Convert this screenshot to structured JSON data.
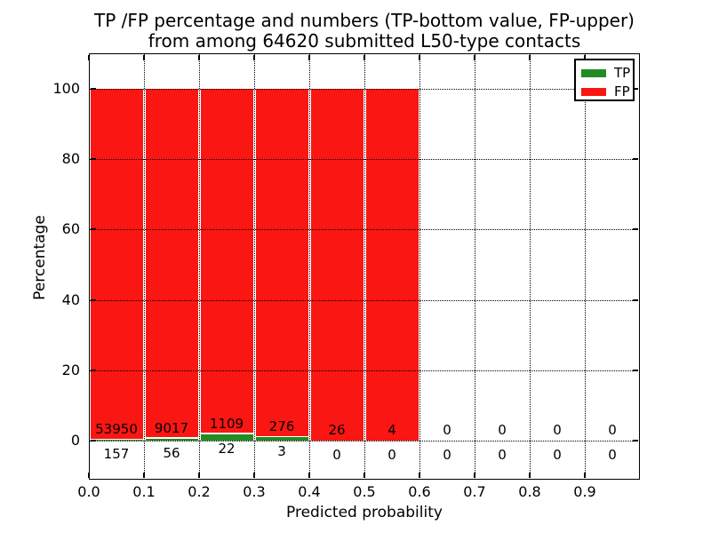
{
  "chart_data": {
    "type": "bar",
    "stacked": true,
    "title_lines": [
      "TP /FP percentage and numbers (TP-bottom value, FP-upper)",
      "from among 64620 submitted L50-type contacts"
    ],
    "total_submitted": 64620,
    "xlabel": "Predicted probability",
    "ylabel": "Percentage",
    "xlim": [
      0.0,
      1.0
    ],
    "ylim": [
      -11,
      110
    ],
    "xticks": [
      {
        "v": 0.0,
        "label": "0.0"
      },
      {
        "v": 0.1,
        "label": "0.1"
      },
      {
        "v": 0.2,
        "label": "0.2"
      },
      {
        "v": 0.3,
        "label": "0.3"
      },
      {
        "v": 0.4,
        "label": "0.4"
      },
      {
        "v": 0.5,
        "label": "0.5"
      },
      {
        "v": 0.6,
        "label": "0.6"
      },
      {
        "v": 0.7,
        "label": "0.7"
      },
      {
        "v": 0.8,
        "label": "0.8"
      },
      {
        "v": 0.9,
        "label": "0.9"
      }
    ],
    "yticks": [
      {
        "v": 0,
        "label": "0"
      },
      {
        "v": 20,
        "label": "20"
      },
      {
        "v": 40,
        "label": "40"
      },
      {
        "v": 60,
        "label": "60"
      },
      {
        "v": 80,
        "label": "80"
      },
      {
        "v": 100,
        "label": "100"
      }
    ],
    "grid": true,
    "grid_style": "dotted",
    "bar_colors": {
      "tp": "#228b22",
      "fp": "#fa1612"
    },
    "legend": {
      "position": "upper right",
      "entries": [
        {
          "key": "tp",
          "label": "TP",
          "color": "#228b22"
        },
        {
          "key": "fp",
          "label": "FP",
          "color": "#fa1612"
        }
      ]
    },
    "bins": [
      {
        "x_range": [
          0.0,
          0.1
        ],
        "tp_count": 157,
        "fp_count": 53950,
        "tp_pct": 0.29,
        "fp_pct": 99.71
      },
      {
        "x_range": [
          0.1,
          0.2
        ],
        "tp_count": 56,
        "fp_count": 9017,
        "tp_pct": 0.62,
        "fp_pct": 99.38
      },
      {
        "x_range": [
          0.2,
          0.3
        ],
        "tp_count": 22,
        "fp_count": 1109,
        "tp_pct": 1.95,
        "fp_pct": 98.05
      },
      {
        "x_range": [
          0.3,
          0.4
        ],
        "tp_count": 3,
        "fp_count": 276,
        "tp_pct": 1.08,
        "fp_pct": 98.92
      },
      {
        "x_range": [
          0.4,
          0.5
        ],
        "tp_count": 0,
        "fp_count": 26,
        "tp_pct": 0.0,
        "fp_pct": 100.0
      },
      {
        "x_range": [
          0.5,
          0.6
        ],
        "tp_count": 0,
        "fp_count": 4,
        "tp_pct": 0.0,
        "fp_pct": 100.0
      },
      {
        "x_range": [
          0.6,
          0.7
        ],
        "tp_count": 0,
        "fp_count": 0,
        "tp_pct": 0.0,
        "fp_pct": 0.0
      },
      {
        "x_range": [
          0.7,
          0.8
        ],
        "tp_count": 0,
        "fp_count": 0,
        "tp_pct": 0.0,
        "fp_pct": 0.0
      },
      {
        "x_range": [
          0.8,
          0.9
        ],
        "tp_count": 0,
        "fp_count": 0,
        "tp_pct": 0.0,
        "fp_pct": 0.0
      },
      {
        "x_range": [
          0.9,
          1.0
        ],
        "tp_count": 0,
        "fp_count": 0,
        "tp_pct": 0.0,
        "fp_pct": 0.0
      }
    ]
  }
}
